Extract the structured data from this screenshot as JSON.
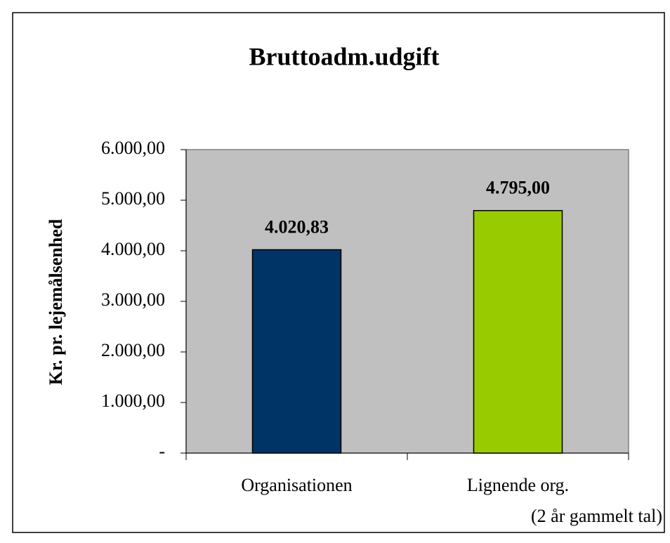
{
  "chart_data": {
    "type": "bar",
    "title": "Bruttoadm.udgift",
    "y_label": "Kr. pr. lejemålsenhed",
    "categories": [
      "Organisationen",
      "Lignende org."
    ],
    "annotation": "(2 år gammelt tal)",
    "values": [
      4020.83,
      4795
    ],
    "value_labels": [
      "4.020,83",
      "4.795,00"
    ],
    "colors": [
      "#003366",
      "#99cc00"
    ],
    "plot_background": "#c0c0c0",
    "ylim": [
      0,
      6000
    ],
    "yticks": [
      {
        "value": 0,
        "label": "-"
      },
      {
        "value": 1000,
        "label": "1.000,00"
      },
      {
        "value": 2000,
        "label": "2.000,00"
      },
      {
        "value": 3000,
        "label": "3.000,00"
      },
      {
        "value": 4000,
        "label": "4.000,00"
      },
      {
        "value": 5000,
        "label": "5.000,00"
      },
      {
        "value": 6000,
        "label": "6.000,00"
      }
    ],
    "grid": false
  }
}
